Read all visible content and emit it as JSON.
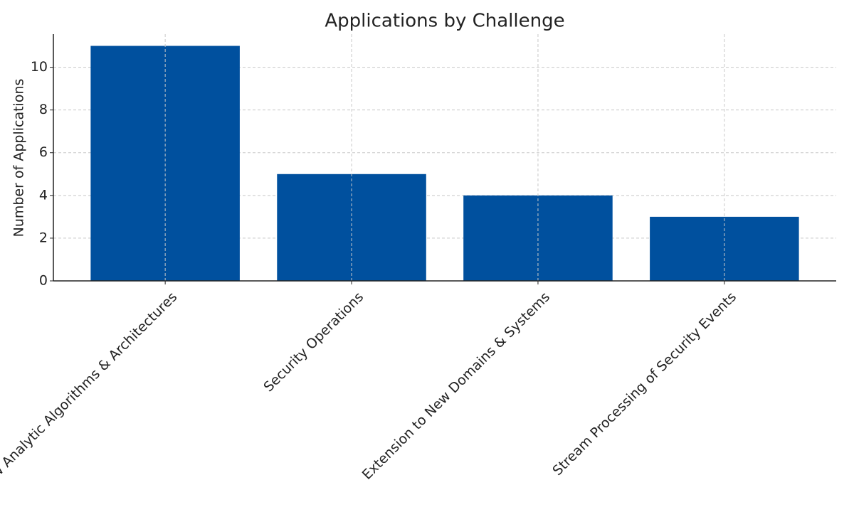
{
  "chart_data": {
    "type": "bar",
    "title": "Applications by Challenge",
    "y_label": "Number of Applications",
    "categories": [
      "New Analytic Algorithms & Architectures",
      "Security Operations",
      "Extension to New Domains & Systems",
      "Stream Processing of Security Events"
    ],
    "values": [
      11,
      5,
      4,
      3
    ],
    "color": "#00509e",
    "ylim": [
      0,
      11.55
    ],
    "yticks": [
      0,
      2,
      4,
      6,
      8,
      10
    ],
    "grid": true
  }
}
